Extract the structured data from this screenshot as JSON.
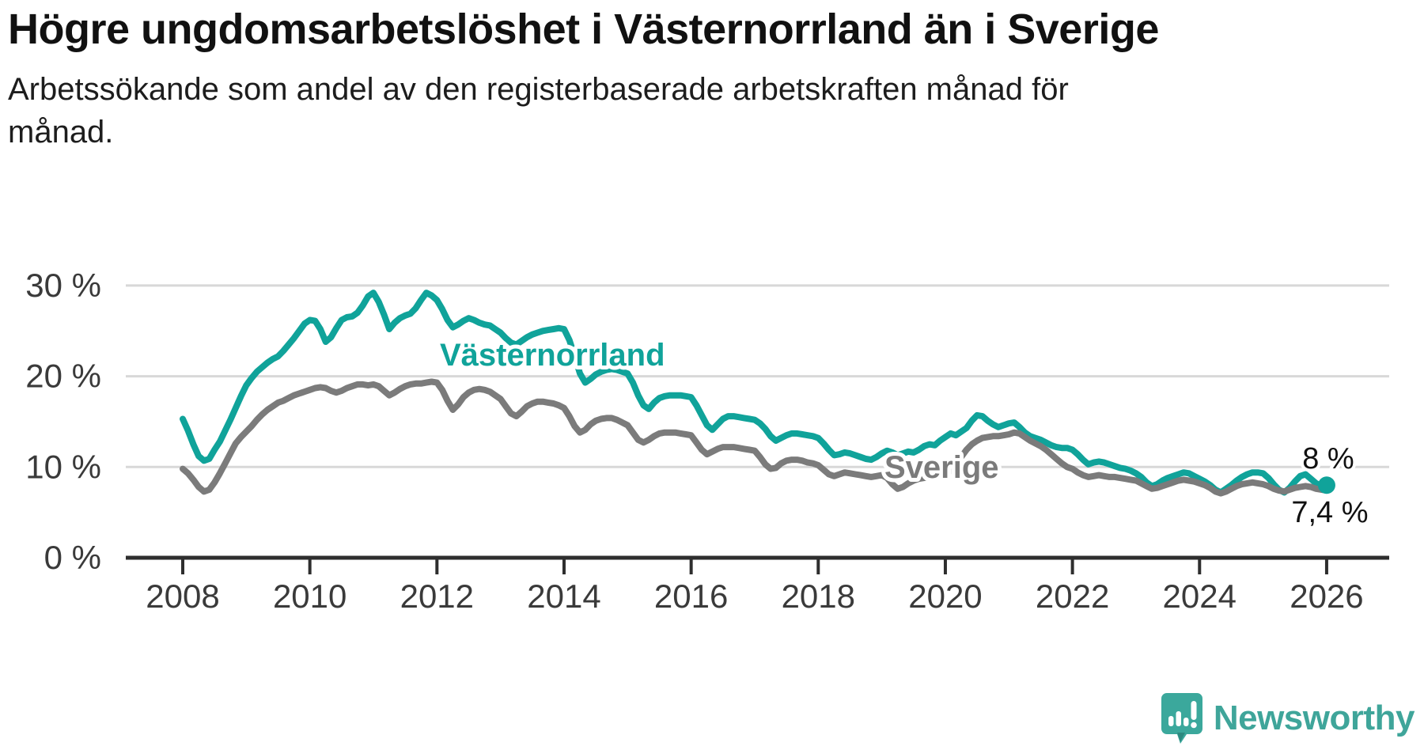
{
  "header": {
    "title": "Högre ungdomsarbetslöshet i Västernorrland än i Sverige",
    "subtitle": "Arbetssökande som andel av den registerbaserade arbetskraften månad för månad."
  },
  "footer": {
    "brand": "Newsworthy",
    "logo_icon": "newsworthy-speech-bubble-barchart-icon"
  },
  "colors": {
    "vasternorrland": "#10a39a",
    "sverige": "#7b7b7b",
    "grid": "#d8d8d8",
    "axis": "#2e2e2e",
    "tick_text": "#3a3a3a",
    "annotation_text": "#111111",
    "logo": "#3ba89c"
  },
  "chart_data": {
    "type": "line",
    "title": "Högre ungdomsarbetslöshet i Västernorrland än i Sverige",
    "subtitle": "Arbetssökande som andel av den registerbaserade arbetskraften månad för månad.",
    "xlabel": "",
    "ylabel": "",
    "grid": "horizontal",
    "legend_position": "inline-labels",
    "xlim": [
      2007.1,
      2027.0
    ],
    "ylim": [
      0,
      32
    ],
    "yticks": [
      {
        "value": 0,
        "label": "0 %"
      },
      {
        "value": 10,
        "label": "10 %"
      },
      {
        "value": 20,
        "label": "20 %"
      },
      {
        "value": 30,
        "label": "30 %"
      }
    ],
    "xticks": [
      {
        "year": 2008,
        "label": "2008"
      },
      {
        "year": 2010,
        "label": "2010"
      },
      {
        "year": 2012,
        "label": "2012"
      },
      {
        "year": 2014,
        "label": "2014"
      },
      {
        "year": 2016,
        "label": "2016"
      },
      {
        "year": 2018,
        "label": "2018"
      },
      {
        "year": 2020,
        "label": "2020"
      },
      {
        "year": 2022,
        "label": "2022"
      },
      {
        "year": 2024,
        "label": "2024"
      },
      {
        "year": 2026,
        "label": "2026"
      }
    ],
    "x_start_year": 2008,
    "x_step_months": 1,
    "series": [
      {
        "name": "Västernorrland",
        "color": "#10a39a",
        "end_label": "8 %",
        "end_dot": true,
        "values": [
          15.3,
          14.0,
          12.5,
          11.2,
          10.7,
          10.9,
          11.9,
          12.8,
          14.0,
          15.2,
          16.5,
          17.8,
          19.0,
          19.8,
          20.5,
          21.0,
          21.5,
          21.9,
          22.2,
          22.8,
          23.5,
          24.2,
          25.0,
          25.8,
          26.2,
          26.1,
          25.2,
          23.8,
          24.3,
          25.3,
          26.2,
          26.5,
          26.6,
          27.0,
          27.8,
          28.8,
          29.2,
          28.2,
          26.8,
          25.2,
          25.9,
          26.4,
          26.7,
          26.9,
          27.5,
          28.4,
          29.2,
          28.9,
          28.4,
          27.4,
          26.2,
          25.4,
          25.7,
          26.1,
          26.4,
          26.2,
          25.9,
          25.7,
          25.6,
          25.2,
          24.8,
          24.2,
          23.7,
          23.5,
          23.9,
          24.3,
          24.6,
          24.8,
          25.0,
          25.1,
          25.2,
          25.3,
          25.2,
          24.0,
          22.2,
          20.3,
          19.3,
          19.7,
          20.2,
          20.5,
          20.7,
          20.8,
          20.7,
          20.5,
          20.3,
          19.3,
          17.9,
          16.8,
          16.4,
          17.1,
          17.6,
          17.8,
          17.9,
          17.9,
          17.9,
          17.8,
          17.7,
          16.8,
          15.7,
          14.6,
          14.1,
          14.7,
          15.3,
          15.6,
          15.6,
          15.5,
          15.4,
          15.3,
          15.2,
          14.8,
          14.2,
          13.4,
          12.9,
          13.2,
          13.5,
          13.7,
          13.7,
          13.6,
          13.5,
          13.4,
          13.2,
          12.6,
          11.9,
          11.3,
          11.4,
          11.6,
          11.5,
          11.3,
          11.1,
          10.9,
          10.8,
          11.1,
          11.5,
          11.8,
          11.6,
          11.3,
          11.5,
          11.7,
          11.6,
          11.9,
          12.3,
          12.5,
          12.4,
          12.9,
          13.3,
          13.7,
          13.5,
          13.9,
          14.3,
          15.1,
          15.7,
          15.6,
          15.1,
          14.7,
          14.4,
          14.6,
          14.8,
          14.9,
          14.4,
          13.8,
          13.4,
          13.2,
          13.0,
          12.7,
          12.4,
          12.2,
          12.1,
          12.1,
          11.9,
          11.4,
          10.8,
          10.3,
          10.5,
          10.6,
          10.5,
          10.3,
          10.1,
          9.9,
          9.8,
          9.6,
          9.3,
          8.9,
          8.3,
          7.9,
          8.1,
          8.5,
          8.8,
          9.0,
          9.2,
          9.4,
          9.3,
          9.0,
          8.7,
          8.4,
          8.0,
          7.5,
          7.2,
          7.6,
          8.0,
          8.5,
          8.9,
          9.2,
          9.4,
          9.4,
          9.3,
          8.8,
          8.1,
          7.5,
          7.2,
          7.7,
          8.4,
          9.0,
          9.2,
          8.7,
          8.2,
          7.9,
          8.0
        ]
      },
      {
        "name": "Sverige",
        "color": "#7b7b7b",
        "end_label": "7,4 %",
        "end_dot": false,
        "values": [
          9.8,
          9.3,
          8.6,
          7.8,
          7.3,
          7.5,
          8.3,
          9.3,
          10.4,
          11.5,
          12.6,
          13.3,
          13.9,
          14.5,
          15.2,
          15.8,
          16.3,
          16.7,
          17.1,
          17.3,
          17.6,
          17.9,
          18.1,
          18.3,
          18.5,
          18.7,
          18.8,
          18.7,
          18.4,
          18.2,
          18.4,
          18.7,
          18.9,
          19.1,
          19.1,
          19.0,
          19.1,
          18.9,
          18.4,
          17.9,
          18.2,
          18.6,
          18.9,
          19.1,
          19.2,
          19.2,
          19.3,
          19.4,
          19.3,
          18.5,
          17.3,
          16.3,
          16.9,
          17.7,
          18.2,
          18.5,
          18.6,
          18.5,
          18.3,
          17.9,
          17.5,
          16.7,
          15.9,
          15.6,
          16.1,
          16.7,
          17.0,
          17.2,
          17.2,
          17.1,
          17.0,
          16.8,
          16.5,
          15.6,
          14.5,
          13.8,
          14.1,
          14.7,
          15.1,
          15.3,
          15.4,
          15.4,
          15.2,
          14.9,
          14.6,
          13.8,
          13.0,
          12.7,
          13.0,
          13.4,
          13.7,
          13.8,
          13.8,
          13.8,
          13.7,
          13.6,
          13.5,
          12.7,
          11.9,
          11.4,
          11.7,
          12.0,
          12.2,
          12.2,
          12.2,
          12.1,
          12.0,
          11.9,
          11.8,
          11.1,
          10.3,
          9.8,
          9.9,
          10.4,
          10.7,
          10.8,
          10.8,
          10.7,
          10.5,
          10.4,
          10.2,
          9.7,
          9.2,
          9.0,
          9.2,
          9.4,
          9.3,
          9.2,
          9.1,
          9.0,
          8.9,
          9.0,
          9.1,
          8.8,
          8.1,
          7.6,
          7.8,
          8.2,
          8.5,
          8.7,
          8.8,
          8.9,
          9.0,
          9.1,
          9.3,
          9.6,
          10.3,
          11.1,
          11.9,
          12.5,
          12.9,
          13.2,
          13.3,
          13.4,
          13.4,
          13.5,
          13.6,
          13.8,
          13.7,
          13.3,
          12.9,
          12.6,
          12.3,
          11.9,
          11.4,
          10.9,
          10.4,
          10.0,
          9.8,
          9.4,
          9.1,
          8.9,
          9.0,
          9.1,
          9.0,
          8.9,
          8.9,
          8.8,
          8.7,
          8.6,
          8.5,
          8.2,
          7.9,
          7.6,
          7.7,
          7.9,
          8.1,
          8.3,
          8.5,
          8.6,
          8.5,
          8.4,
          8.2,
          8.0,
          7.7,
          7.3,
          7.1,
          7.3,
          7.6,
          7.9,
          8.1,
          8.2,
          8.3,
          8.2,
          8.1,
          7.9,
          7.6,
          7.4,
          7.3,
          7.5,
          7.7,
          7.8,
          7.9,
          7.8,
          7.6,
          7.5,
          7.4
        ]
      }
    ],
    "annotations": [
      {
        "text": "Västernorrland",
        "series": "Västernorrland"
      },
      {
        "text": "Sverige",
        "series": "Sverige"
      },
      {
        "text": "8 %",
        "series": "Västernorrland",
        "role": "end-value"
      },
      {
        "text": "7,4 %",
        "series": "Sverige",
        "role": "end-value"
      }
    ]
  }
}
